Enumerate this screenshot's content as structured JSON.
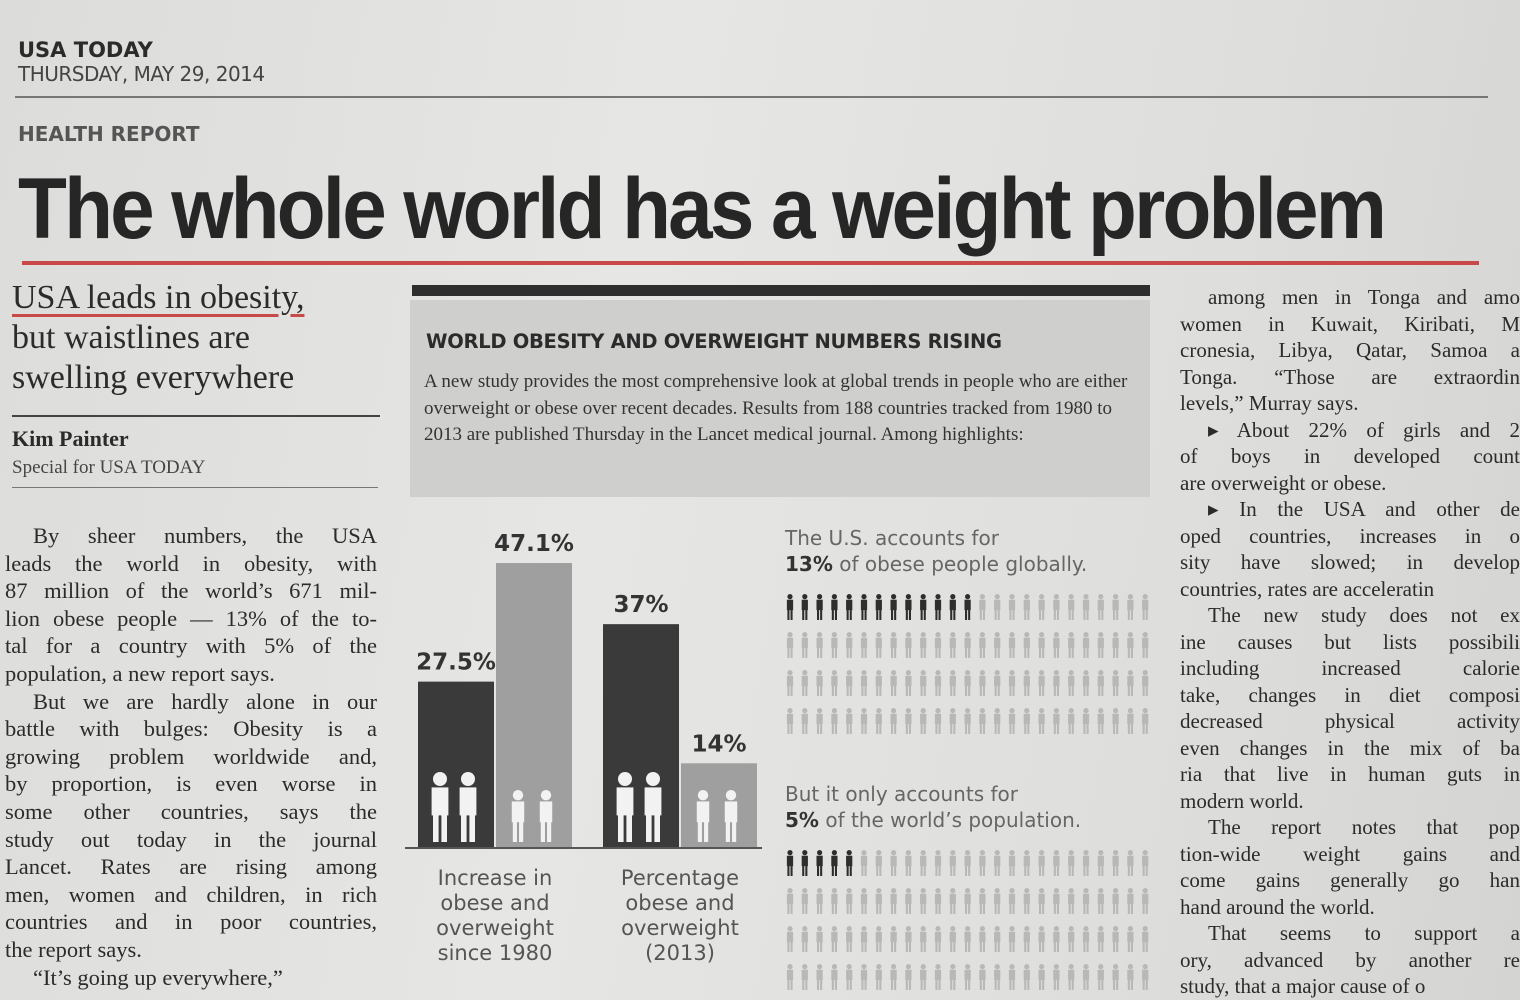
{
  "header": {
    "masthead": "USA TODAY",
    "date": "THURSDAY, MAY 29, 2014",
    "section": "HEALTH REPORT"
  },
  "headline": "The whole world has a weight problem",
  "deck": [
    "USA leads in obesity,",
    "but waistlines are",
    "swelling everywhere"
  ],
  "byline": {
    "author": "Kim Painter",
    "credit": "Special for USA TODAY"
  },
  "article_left": [
    [
      "By sheer numbers, the USA",
      "leads the world in obesity, with",
      "87 million of the world’s 671 mil-",
      "lion obese people — 13% of the to-",
      "tal for a country with 5% of the",
      "population, a new report says."
    ],
    [
      "But we are hardly alone in our",
      "battle with bulges: Obesity is a",
      "growing problem worldwide and,",
      "by proportion, is even worse in",
      "some other countries, says the",
      "study out today in the journal",
      "Lancet. Rates are rising among",
      "men, women and children, in rich",
      "countries and in poor countries,",
      "the report says."
    ],
    [
      "“It’s going up everywhere,”"
    ]
  ],
  "article_right": [
    [
      "among men in Tonga and amo",
      "women in Kuwait, Kiribati, M",
      "cronesia, Libya, Qatar, Samoa a",
      "Tonga. “Those are extraordin",
      "levels,” Murray says."
    ],
    [
      "▸ About 22% of girls and 2",
      "of boys in developed count",
      "are overweight or obese."
    ],
    [
      "▸ In the USA and other de",
      "oped countries, increases in o",
      "sity have slowed; in develop",
      "countries, rates are acceleratin"
    ],
    [
      "The new study does not ex",
      "ine causes but lists possibili",
      "including increased calorie",
      "take, changes in diet composi",
      "decreased physical activity",
      "even changes in the mix of ba",
      "ria that live in human guts in",
      "modern world."
    ],
    [
      "The report notes that pop",
      "tion-wide weight gains and",
      "come gains generally go han",
      "hand around the world."
    ],
    [
      "That seems to support a",
      "ory, advanced by another re",
      "study, that a major cause of o"
    ]
  ],
  "infographic": {
    "title": "WORLD OBESITY AND OVERWEIGHT NUMBERS RISING",
    "intro": "A new study provides the most comprehensive look at global trends in people who are either overweight or obese over recent decades. Results from 188 countries tracked from 1980 to 2013 are published Thursday in the Lancet medical journal. Among highlights:"
  },
  "chart_data": {
    "type": "bar",
    "categories": [
      "Increase in obese and overweight since 1980",
      "Percentage obese and overweight (2013)"
    ],
    "series": [
      {
        "color": "#3a3a3a",
        "values": [
          27.5,
          37
        ],
        "value_labels": [
          "27.5%",
          "37%"
        ]
      },
      {
        "color": "#9f9f9f",
        "values": [
          47.1,
          14
        ],
        "value_labels": [
          "47.1%",
          "14%"
        ]
      }
    ]
  },
  "pictograms": [
    {
      "lead": "The U.S. accounts for",
      "value": 13,
      "value_label": "13%",
      "rest": "of obese people globally."
    },
    {
      "lead": "But it only accounts for",
      "value": 5,
      "value_label": "5%",
      "rest": "of the world’s population."
    }
  ]
}
